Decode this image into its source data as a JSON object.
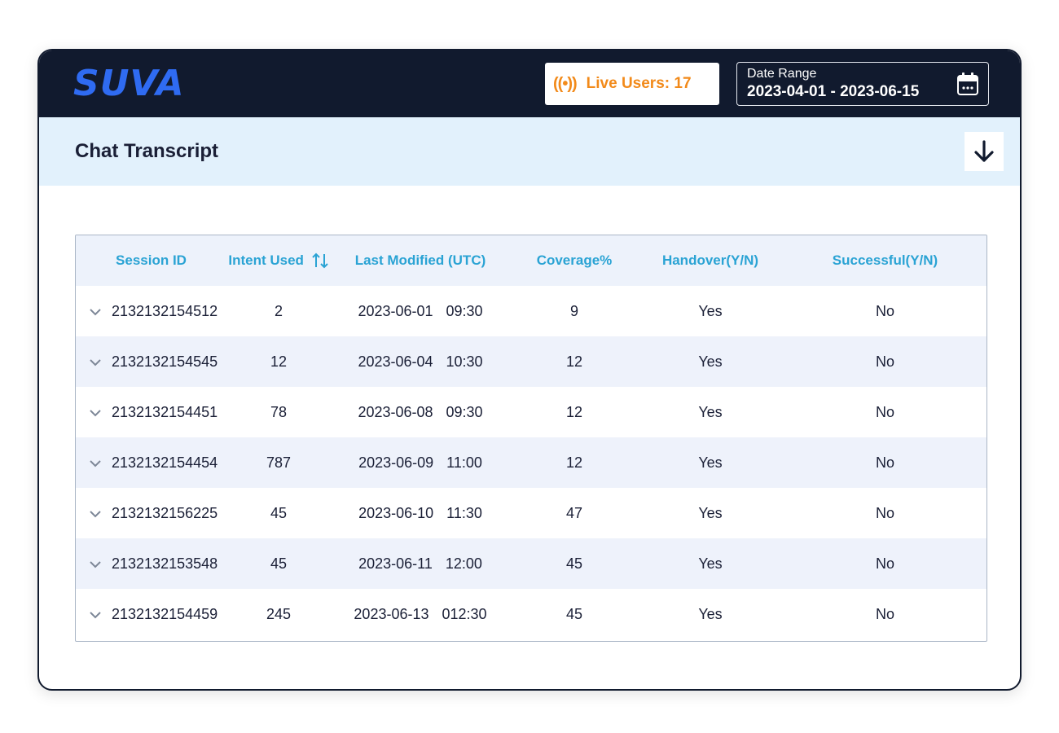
{
  "header": {
    "logo_text": "SUVA",
    "live_users_label": "Live Users: 17",
    "date_range": {
      "label": "Date Range",
      "value": "2023-04-01 - 2023-06-15"
    }
  },
  "page": {
    "title": "Chat Transcript"
  },
  "table": {
    "columns": [
      {
        "label": "Session ID"
      },
      {
        "label": "Intent Used"
      },
      {
        "label": "Last Modified (UTC)"
      },
      {
        "label": "Coverage%"
      },
      {
        "label": "Handover(Y/N)"
      },
      {
        "label": "Successful(Y/N)"
      }
    ],
    "rows": [
      {
        "session_id": "2132132154512",
        "intent_used": "2",
        "date": "2023-06-01",
        "time": "09:30",
        "coverage": "9",
        "handover": "Yes",
        "successful": "No"
      },
      {
        "session_id": "2132132154545",
        "intent_used": "12",
        "date": "2023-06-04",
        "time": "10:30",
        "coverage": "12",
        "handover": "Yes",
        "successful": "No"
      },
      {
        "session_id": "2132132154451",
        "intent_used": "78",
        "date": "2023-06-08",
        "time": "09:30",
        "coverage": "12",
        "handover": "Yes",
        "successful": "No"
      },
      {
        "session_id": "2132132154454",
        "intent_used": "787",
        "date": "2023-06-09",
        "time": "11:00",
        "coverage": "12",
        "handover": "Yes",
        "successful": "No"
      },
      {
        "session_id": "2132132156225",
        "intent_used": "45",
        "date": "2023-06-10",
        "time": "11:30",
        "coverage": "47",
        "handover": "Yes",
        "successful": "No"
      },
      {
        "session_id": "2132132153548",
        "intent_used": "45",
        "date": "2023-06-11",
        "time": "12:00",
        "coverage": "45",
        "handover": "Yes",
        "successful": "No"
      },
      {
        "session_id": "2132132154459",
        "intent_used": "245",
        "date": "2023-06-13",
        "time": "012:30",
        "coverage": "45",
        "handover": "Yes",
        "successful": "No"
      }
    ]
  },
  "icons": {
    "live": "broadcast-icon",
    "calendar": "calendar-icon",
    "download": "download-arrow-icon",
    "sort": "sort-icon",
    "expand": "chevron-down-icon"
  },
  "colors": {
    "topbar": "#111a2e",
    "accent_orange": "#f28a1a",
    "brand_blue": "#2f6bf2",
    "header_text": "#2aa3d4",
    "subheader_bg": "#e2f1fc"
  }
}
